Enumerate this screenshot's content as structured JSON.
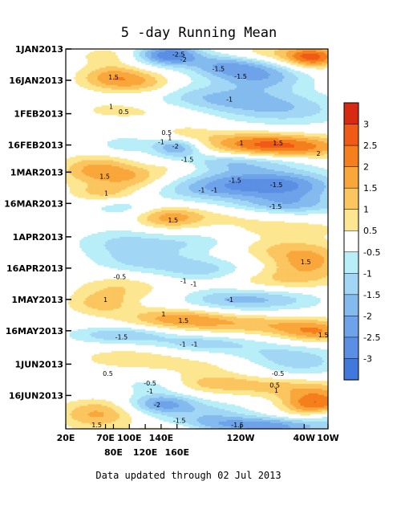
{
  "chart_data": {
    "type": "heatmap",
    "title": "5 -day Running Mean",
    "footer": "Data updated through 02 Jul 2013",
    "x_axis": {
      "top_row_ticks": [
        {
          "label": "20E",
          "lon": 20
        },
        {
          "label": "70E",
          "lon": 70
        },
        {
          "label": "100E",
          "lon": 100
        },
        {
          "label": "140E",
          "lon": 140
        },
        {
          "label": "120W",
          "lon": 240
        },
        {
          "label": "40W",
          "lon": 320
        },
        {
          "label": "10W",
          "lon": 350
        }
      ],
      "bottom_row_ticks": [
        {
          "label": "80E",
          "lon": 80
        },
        {
          "label": "120E",
          "lon": 120
        },
        {
          "label": "160E",
          "lon": 160
        }
      ],
      "range": [
        20,
        350
      ]
    },
    "y_axis": {
      "ticks": [
        {
          "label": "1JAN2013",
          "day": 0
        },
        {
          "label": "16JAN2013",
          "day": 15
        },
        {
          "label": "1FEB2013",
          "day": 31
        },
        {
          "label": "16FEB2013",
          "day": 46
        },
        {
          "label": "1MAR2013",
          "day": 59
        },
        {
          "label": "16MAR2013",
          "day": 74
        },
        {
          "label": "1APR2013",
          "day": 90
        },
        {
          "label": "16APR2013",
          "day": 105
        },
        {
          "label": "1MAY2013",
          "day": 120
        },
        {
          "label": "16MAY2013",
          "day": 135
        },
        {
          "label": "1JUN2013",
          "day": 151
        },
        {
          "label": "16JUN2013",
          "day": 166
        }
      ],
      "range": [
        0,
        182
      ]
    },
    "colorbar": {
      "labels": [
        "3",
        "2.5",
        "2",
        "1.5",
        "1",
        "0.5",
        "-0.5",
        "-1",
        "-1.5",
        "-2",
        "-2.5",
        "-3"
      ],
      "colors": [
        "#d62a12",
        "#ef5a16",
        "#f57f1c",
        "#f9a63a",
        "#fbc55f",
        "#fde690",
        "#ffffff",
        "#b8eef7",
        "#a2d6f5",
        "#84bbef",
        "#6ea3ea",
        "#5a8fe4",
        "#4078dc"
      ]
    },
    "contour_labels": [
      {
        "text": "-2.5",
        "lon": 162,
        "day": 2.5
      },
      {
        "text": "-2",
        "lon": 168,
        "day": 5
      },
      {
        "text": "-1.5",
        "lon": 212,
        "day": 9.5
      },
      {
        "text": "-1.5",
        "lon": 240,
        "day": 13
      },
      {
        "text": "1.5",
        "lon": 80,
        "day": 13.5
      },
      {
        "text": "-1",
        "lon": 226,
        "day": 24
      },
      {
        "text": "1",
        "lon": 77,
        "day": 27.5
      },
      {
        "text": "0.5",
        "lon": 93,
        "day": 30
      },
      {
        "text": "0.5",
        "lon": 147,
        "day": 40
      },
      {
        "text": "1",
        "lon": 151,
        "day": 42.5
      },
      {
        "text": "-1",
        "lon": 140,
        "day": 44.5
      },
      {
        "text": "1",
        "lon": 241,
        "day": 45
      },
      {
        "text": "1.5",
        "lon": 287,
        "day": 45
      },
      {
        "text": "-2",
        "lon": 158,
        "day": 46.5
      },
      {
        "text": "2",
        "lon": 338,
        "day": 50
      },
      {
        "text": "-1.5",
        "lon": 173,
        "day": 53
      },
      {
        "text": "1.5",
        "lon": 69,
        "day": 61
      },
      {
        "text": "-1.5",
        "lon": 233,
        "day": 63
      },
      {
        "text": "-1.5",
        "lon": 285,
        "day": 65
      },
      {
        "text": "-1",
        "lon": 191,
        "day": 67.5
      },
      {
        "text": "-1",
        "lon": 207,
        "day": 67.5
      },
      {
        "text": "1",
        "lon": 71,
        "day": 69
      },
      {
        "text": "-1.5",
        "lon": 284,
        "day": 75.5
      },
      {
        "text": "1.5",
        "lon": 155,
        "day": 82
      },
      {
        "text": "1.5",
        "lon": 322,
        "day": 102
      },
      {
        "text": "-0.5",
        "lon": 88,
        "day": 109
      },
      {
        "text": "-1",
        "lon": 168,
        "day": 111
      },
      {
        "text": "-1",
        "lon": 181,
        "day": 112.5
      },
      {
        "text": "1",
        "lon": 70,
        "day": 120
      },
      {
        "text": "-1",
        "lon": 227,
        "day": 120
      },
      {
        "text": "1",
        "lon": 143,
        "day": 127
      },
      {
        "text": "1.5",
        "lon": 168,
        "day": 130
      },
      {
        "text": "1.5",
        "lon": 344,
        "day": 137
      },
      {
        "text": "-1.5",
        "lon": 90,
        "day": 138
      },
      {
        "text": "-1",
        "lon": 167,
        "day": 141.5
      },
      {
        "text": "-1",
        "lon": 182,
        "day": 141.5
      },
      {
        "text": "0.5",
        "lon": 73,
        "day": 155.5
      },
      {
        "text": "-0.5",
        "lon": 287,
        "day": 155.5
      },
      {
        "text": "-0.5",
        "lon": 126,
        "day": 160
      },
      {
        "text": "0.5",
        "lon": 283,
        "day": 161
      },
      {
        "text": "-1",
        "lon": 126,
        "day": 164
      },
      {
        "text": "1",
        "lon": 285,
        "day": 163.5
      },
      {
        "text": "-2",
        "lon": 135,
        "day": 170.5
      },
      {
        "text": "-1.5",
        "lon": 163,
        "day": 178
      },
      {
        "text": "1.5",
        "lon": 59,
        "day": 180
      },
      {
        "text": "-1.5",
        "lon": 236,
        "day": 180
      },
      {
        "text": "1",
        "lon": 146,
        "day": 184
      },
      {
        "text": "-1.5",
        "lon": 299,
        "day": 183
      }
    ]
  }
}
